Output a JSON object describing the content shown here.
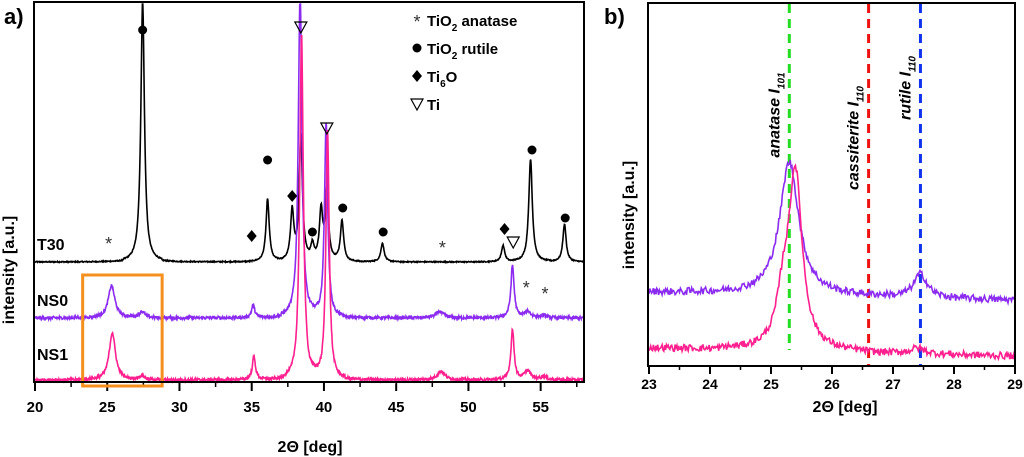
{
  "chart_data": [
    {
      "panel_label": "a)",
      "type": "line",
      "xlabel": "2Θ [deg]",
      "ylabel": "intensity [a.u.]",
      "xlim": [
        20,
        58
      ],
      "x_ticks": [
        20,
        25,
        30,
        35,
        40,
        45,
        50,
        55
      ],
      "x_minor_step": 2.5,
      "y_ticks_shown": false,
      "legend": {
        "position": "top-right",
        "entries": [
          {
            "symbol": "asterisk",
            "glyph": "*",
            "label": "TiO",
            "sub": "2",
            "suffix": " anatase"
          },
          {
            "symbol": "circle",
            "glyph": "●",
            "label": "TiO",
            "sub": "2",
            "suffix": " rutile"
          },
          {
            "symbol": "diamond",
            "glyph": "◆",
            "label": "Ti",
            "sub": "6",
            "suffix": "O"
          },
          {
            "symbol": "triangle-down",
            "glyph": "∇",
            "label": "Ti",
            "sub": "",
            "suffix": ""
          }
        ]
      },
      "series": [
        {
          "name": "T30",
          "color": "#000000",
          "baseline": 0.68,
          "noise": 0.004,
          "peaks": [
            {
              "x": 27.45,
              "h": 2.1,
              "w": 0.22
            },
            {
              "x": 36.1,
              "h": 0.5,
              "w": 0.2
            },
            {
              "x": 37.8,
              "h": 0.4,
              "w": 0.2
            },
            {
              "x": 38.4,
              "h": 1.0,
              "w": 0.2
            },
            {
              "x": 39.2,
              "h": 0.12,
              "w": 0.2
            },
            {
              "x": 39.8,
              "h": 0.4,
              "w": 0.2
            },
            {
              "x": 40.2,
              "h": 0.55,
              "w": 0.2
            },
            {
              "x": 41.25,
              "h": 0.33,
              "w": 0.2
            },
            {
              "x": 44.05,
              "h": 0.15,
              "w": 0.2
            },
            {
              "x": 52.4,
              "h": 0.13,
              "w": 0.2
            },
            {
              "x": 54.3,
              "h": 0.82,
              "w": 0.22
            },
            {
              "x": 56.65,
              "h": 0.3,
              "w": 0.2
            }
          ]
        },
        {
          "name": "NS0",
          "color": "#8B2BF0",
          "baseline": 0.35,
          "noise": 0.012,
          "peaks": [
            {
              "x": 25.3,
              "h": 0.26,
              "w": 0.4
            },
            {
              "x": 27.4,
              "h": 0.05,
              "w": 0.35
            },
            {
              "x": 35.1,
              "h": 0.1,
              "w": 0.2
            },
            {
              "x": 38.35,
              "h": 2.6,
              "w": 0.22
            },
            {
              "x": 40.15,
              "h": 1.55,
              "w": 0.2
            },
            {
              "x": 48.0,
              "h": 0.05,
              "w": 0.5
            },
            {
              "x": 53.05,
              "h": 0.42,
              "w": 0.2
            },
            {
              "x": 54.1,
              "h": 0.05,
              "w": 0.4
            },
            {
              "x": 55.2,
              "h": 0.02,
              "w": 0.35
            }
          ]
        },
        {
          "name": "NS1",
          "color": "#FF1F8E",
          "baseline": 0.0,
          "noise": 0.012,
          "peaks": [
            {
              "x": 25.35,
              "h": 0.38,
              "w": 0.38
            },
            {
              "x": 27.4,
              "h": 0.03,
              "w": 0.35
            },
            {
              "x": 35.15,
              "h": 0.18,
              "w": 0.2
            },
            {
              "x": 38.45,
              "h": 2.75,
              "w": 0.22
            },
            {
              "x": 40.25,
              "h": 2.0,
              "w": 0.2
            },
            {
              "x": 48.1,
              "h": 0.07,
              "w": 0.45
            },
            {
              "x": 53.05,
              "h": 0.4,
              "w": 0.2
            },
            {
              "x": 54.1,
              "h": 0.07,
              "w": 0.4
            },
            {
              "x": 55.2,
              "h": 0.03,
              "w": 0.35
            }
          ]
        }
      ],
      "peak_markers": [
        {
          "symbol": "circle",
          "x": 27.45,
          "series": "T30"
        },
        {
          "symbol": "asterisk",
          "x": 25.1,
          "series": "T30"
        },
        {
          "symbol": "diamond",
          "x": 35.0,
          "series": "T30"
        },
        {
          "symbol": "circle",
          "x": 36.1,
          "series": "T30"
        },
        {
          "symbol": "diamond",
          "x": 37.8,
          "series": "T30"
        },
        {
          "symbol": "triangle-down",
          "x": 38.4,
          "series": "NS0"
        },
        {
          "symbol": "circle",
          "x": 39.2,
          "series": "T30"
        },
        {
          "symbol": "triangle-down",
          "x": 40.2,
          "series": "NS0"
        },
        {
          "symbol": "circle",
          "x": 41.3,
          "series": "T30"
        },
        {
          "symbol": "circle",
          "x": 44.1,
          "series": "T30"
        },
        {
          "symbol": "asterisk",
          "x": 48.2,
          "series": "T30"
        },
        {
          "symbol": "diamond",
          "x": 52.5,
          "series": "T30"
        },
        {
          "symbol": "triangle-down",
          "x": 53.1,
          "series": "T30"
        },
        {
          "symbol": "circle",
          "x": 54.4,
          "series": "T30"
        },
        {
          "symbol": "circle",
          "x": 56.7,
          "series": "T30"
        },
        {
          "symbol": "asterisk",
          "x": 54.0,
          "series": "NS0"
        },
        {
          "symbol": "asterisk",
          "x": 55.3,
          "series": "NS0"
        }
      ],
      "highlight_box": {
        "x_range": [
          23.3,
          28.8
        ],
        "color": "#F5901E"
      }
    },
    {
      "panel_label": "b)",
      "type": "line",
      "xlabel": "2Θ  [deg]",
      "ylabel": "intensity [a.u.]",
      "xlim": [
        23,
        29
      ],
      "x_ticks": [
        23,
        24,
        25,
        26,
        27,
        28,
        29
      ],
      "x_minor_step": 0.5,
      "y_ticks_shown": false,
      "series": [
        {
          "name": "NS0",
          "color": "#8B2BF0",
          "baseline": 0.53,
          "noise": 0.025,
          "slope": -0.01,
          "peaks": [
            {
              "x": 25.3,
              "h": 0.95,
              "w": 0.28
            },
            {
              "x": 27.45,
              "h": 0.17,
              "w": 0.2
            }
          ]
        },
        {
          "name": "NS1",
          "color": "#FF1F8E",
          "baseline": 0.13,
          "noise": 0.025,
          "slope": -0.01,
          "peaks": [
            {
              "x": 25.4,
              "h": 1.25,
              "w": 0.2
            },
            {
              "x": 25.2,
              "h": 0.3,
              "w": 0.18
            },
            {
              "x": 27.4,
              "h": 0.04,
              "w": 0.2
            }
          ]
        }
      ],
      "reference_lines": [
        {
          "name": "anatase",
          "x": 25.3,
          "color": "#22DD22",
          "label": "anatase I",
          "sub": "101"
        },
        {
          "name": "cassiterite",
          "x": 26.6,
          "color": "#EE1111",
          "label": "cassiterite I",
          "sub": "110"
        },
        {
          "name": "rutile",
          "x": 27.45,
          "color": "#1133EE",
          "label": "rutile I",
          "sub": "110"
        }
      ]
    }
  ]
}
